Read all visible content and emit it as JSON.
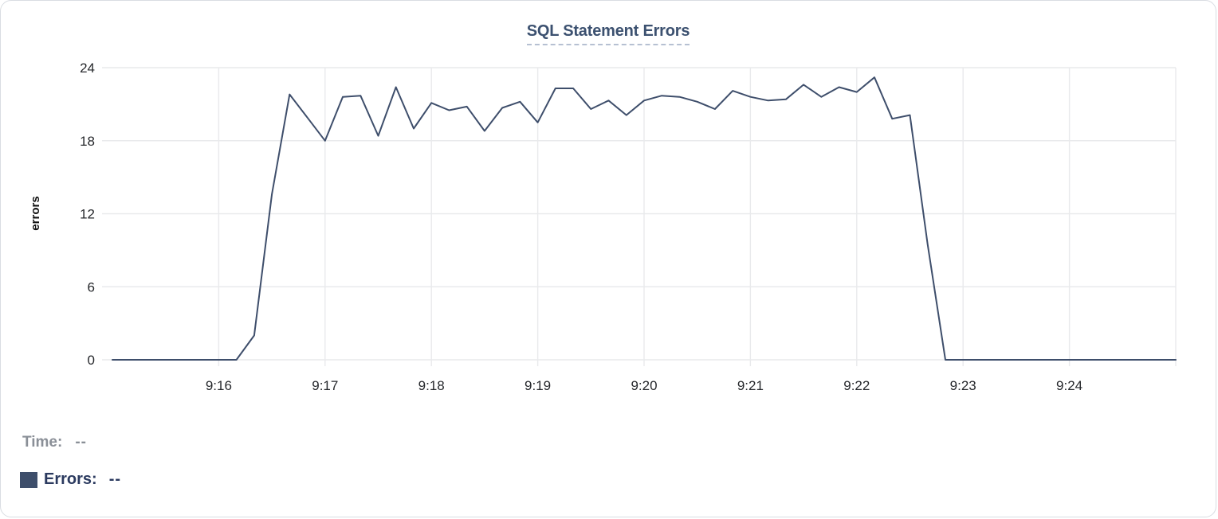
{
  "chart": {
    "title": "SQL Statement Errors"
  },
  "legend": {
    "time_label": "Time:",
    "time_value": "--",
    "errors_label": "Errors:",
    "errors_value": "--",
    "marker_color": "#3e4e6b"
  },
  "colors": {
    "line": "#3e4e6b",
    "grid": "#e9eaec",
    "title": "#3c5170",
    "title_underline": "#b6c0d2",
    "tick_label": "#26282c",
    "axis_title": "#111111",
    "time_gray": "#8a8f97",
    "errors_navy": "#2b3a5f",
    "card_border": "#d9dde2"
  },
  "chart_data": {
    "type": "line",
    "title": "SQL Statement Errors",
    "xlabel": "",
    "ylabel": "errors",
    "ylim": [
      0,
      24
    ],
    "yticks": [
      0,
      6,
      12,
      18,
      24
    ],
    "xtick_labels": [
      "9:16",
      "9:17",
      "9:18",
      "9:19",
      "9:20",
      "9:21",
      "9:22",
      "9:23",
      "9:24"
    ],
    "x_start": "9:15:00",
    "x_end": "9:25:00",
    "interval_sec": 10,
    "grid": true,
    "legend_position": "bottom",
    "times": [
      "9:15:00",
      "9:15:10",
      "9:15:20",
      "9:15:30",
      "9:15:40",
      "9:15:50",
      "9:16:00",
      "9:16:10",
      "9:16:20",
      "9:16:30",
      "9:16:40",
      "9:16:50",
      "9:17:00",
      "9:17:10",
      "9:17:20",
      "9:17:30",
      "9:17:40",
      "9:17:50",
      "9:18:00",
      "9:18:10",
      "9:18:20",
      "9:18:30",
      "9:18:40",
      "9:18:50",
      "9:19:00",
      "9:19:10",
      "9:19:20",
      "9:19:30",
      "9:19:40",
      "9:19:50",
      "9:20:00",
      "9:20:10",
      "9:20:20",
      "9:20:30",
      "9:20:40",
      "9:20:50",
      "9:21:00",
      "9:21:10",
      "9:21:20",
      "9:21:30",
      "9:21:40",
      "9:21:50",
      "9:22:00",
      "9:22:10",
      "9:22:20",
      "9:22:30",
      "9:22:40",
      "9:22:50",
      "9:23:00",
      "9:23:10",
      "9:23:20",
      "9:23:30",
      "9:23:40",
      "9:23:50",
      "9:24:00",
      "9:24:10",
      "9:24:20",
      "9:24:30",
      "9:24:40",
      "9:24:50",
      "9:25:00"
    ],
    "values": [
      0,
      0,
      0,
      0,
      0,
      0,
      0,
      0,
      2,
      13.6,
      21.8,
      19.9,
      18,
      21.6,
      21.7,
      18.4,
      22.4,
      19,
      21.1,
      20.5,
      20.8,
      18.8,
      20.7,
      21.2,
      19.5,
      22.3,
      22.3,
      20.6,
      21.3,
      20.1,
      21.3,
      21.7,
      21.6,
      21.2,
      20.6,
      22.1,
      21.6,
      21.3,
      21.4,
      22.6,
      21.6,
      22.4,
      22,
      23.2,
      19.8,
      20.1,
      9.5,
      0,
      0,
      0,
      0,
      0,
      0,
      0,
      0,
      0,
      0,
      0,
      0,
      0,
      0
    ]
  }
}
